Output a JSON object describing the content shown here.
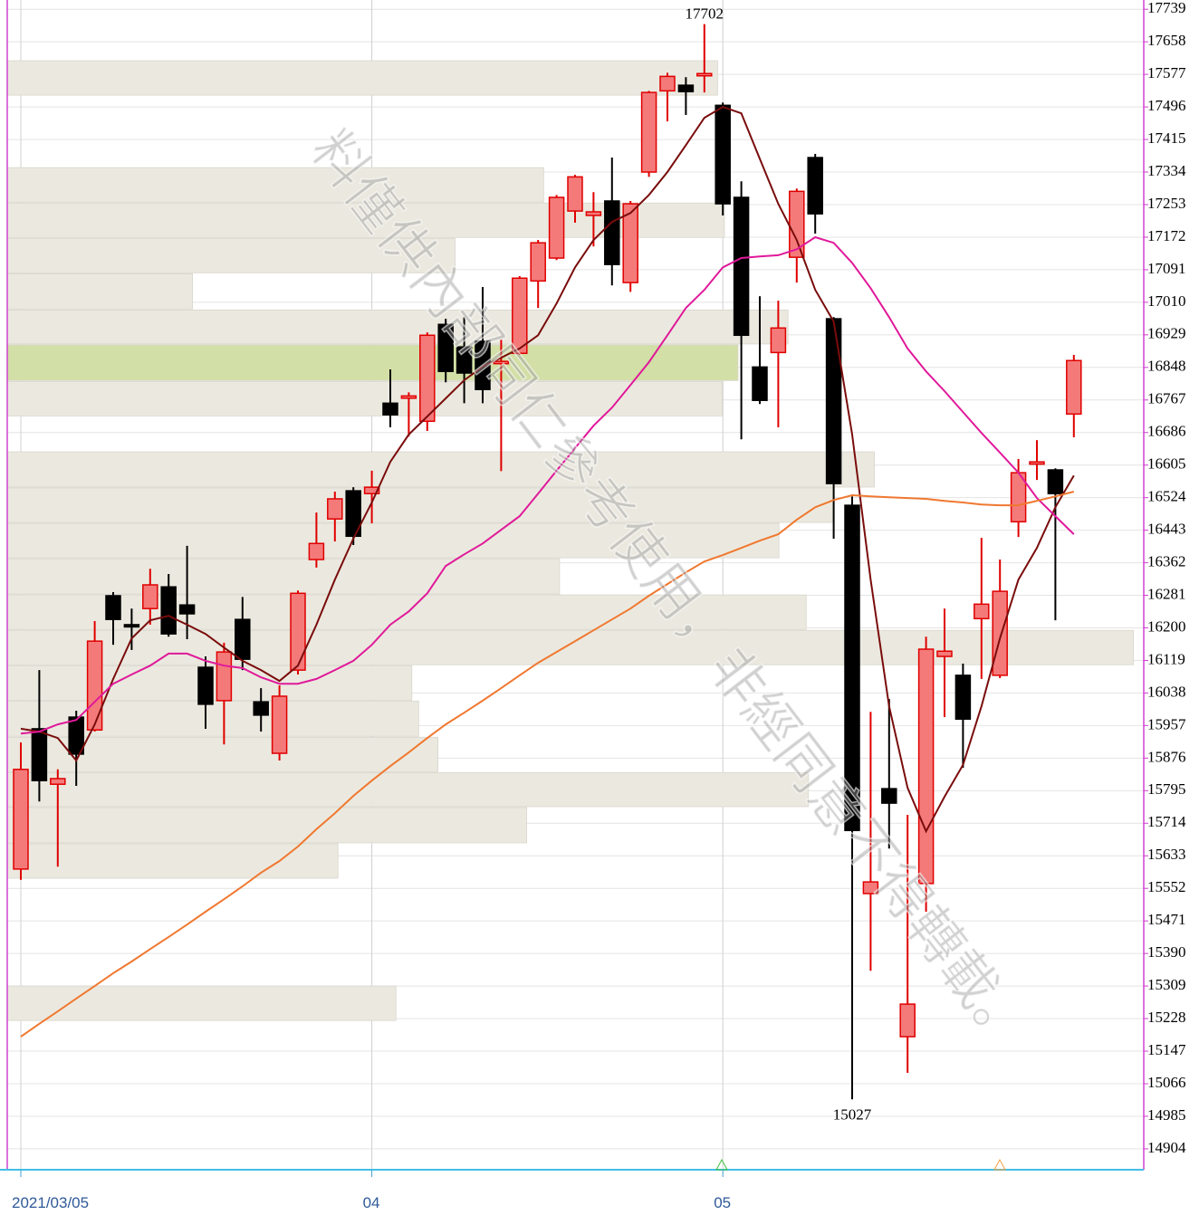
{
  "chart_data": {
    "type": "candlestick",
    "categories": [
      "2021/03/05",
      null,
      null,
      null,
      null,
      null,
      null,
      null,
      null,
      null,
      null,
      null,
      null,
      null,
      null,
      null,
      null,
      null,
      null,
      "04",
      null,
      null,
      null,
      null,
      null,
      null,
      null,
      null,
      null,
      null,
      null,
      null,
      null,
      null,
      null,
      null,
      null,
      null,
      "05",
      null,
      null,
      null,
      null,
      null,
      null,
      null,
      null,
      null,
      null,
      null,
      null,
      null,
      null,
      null,
      null,
      null,
      null,
      null
    ],
    "open": [
      15600,
      15949,
      15811,
      15978,
      15946,
      16280,
      16208,
      16248,
      16302,
      16257,
      16102,
      16019,
      16221,
      16016,
      15888,
      16095,
      16370,
      16471,
      16541,
      16534,
      16759,
      16775,
      16714,
      16955,
      16899,
      16913,
      16858,
      16883,
      17063,
      17120,
      17237,
      17226,
      17262,
      17059,
      17334,
      17536,
      17550,
      17575,
      17500,
      17271,
      16849,
      16885,
      17122,
      17370,
      16969,
      16505,
      15539,
      15800,
      15183,
      15564,
      16129,
      16082,
      16223,
      16082,
      16464,
      16611,
      16593,
      16732
    ],
    "high": [
      15915,
      16095,
      15848,
      15994,
      16217,
      16289,
      16248,
      16347,
      16334,
      16404,
      16129,
      16163,
      16277,
      16050,
      16057,
      16293,
      16487,
      16539,
      16550,
      16591,
      16843,
      16786,
      16935,
      16969,
      16973,
      17048,
      16917,
      17075,
      17165,
      17277,
      17327,
      17284,
      17370,
      17262,
      17536,
      17581,
      17570,
      17702,
      17507,
      17311,
      17025,
      17014,
      17293,
      17379,
      16973,
      16527,
      15991,
      16023,
      15735,
      16178,
      16248,
      16111,
      16424,
      16370,
      16620,
      16667,
      16597,
      16879
    ],
    "low": [
      15573,
      15768,
      15606,
      15807,
      15942,
      16158,
      16145,
      16208,
      16178,
      16172,
      15949,
      15910,
      16095,
      15942,
      15870,
      16084,
      16350,
      16415,
      16406,
      16460,
      16699,
      16676,
      16690,
      16811,
      16759,
      16759,
      16590,
      16879,
      16996,
      17115,
      17208,
      17149,
      17052,
      17036,
      17322,
      17460,
      17476,
      17532,
      17226,
      16669,
      16757,
      16699,
      17059,
      17181,
      16422,
      15027,
      15347,
      15651,
      15093,
      15494,
      15978,
      15852,
      16073,
      16075,
      16426,
      16568,
      16219,
      16674
    ],
    "close": [
      15848,
      15820,
      15825,
      15886,
      16167,
      16221,
      16206,
      16307,
      16185,
      16235,
      16010,
      16140,
      16122,
      15983,
      16030,
      16286,
      16410,
      16521,
      16428,
      16550,
      16730,
      16777,
      16928,
      16838,
      16834,
      16793,
      16863,
      17070,
      17158,
      17271,
      17322,
      17235,
      17104,
      17255,
      17532,
      17572,
      17534,
      17579,
      17255,
      16928,
      16766,
      16946,
      17286,
      17230,
      16559,
      15696,
      15568,
      15764,
      15264,
      16147,
      16142,
      15973,
      16259,
      16291,
      16586,
      16613,
      16534,
      16865
    ],
    "up_color": "#f47a7a",
    "up_edge": "#e00000",
    "down_color": "#000000",
    "annotations": {
      "high_index": 37,
      "low_index": 45
    },
    "lines": [
      {
        "color": "#7a0c0c",
        "values": [
          15949,
          15942,
          15926,
          15870,
          15960,
          16073,
          16174,
          16219,
          16230,
          16208,
          16185,
          16151,
          16118,
          16095,
          16068,
          16106,
          16208,
          16320,
          16422,
          16512,
          16613,
          16681,
          16726,
          16771,
          16816,
          16850,
          16872,
          16895,
          16928,
          17007,
          17097,
          17165,
          17210,
          17232,
          17277,
          17334,
          17401,
          17469,
          17496,
          17480,
          17367,
          17255,
          17165,
          17041,
          16962,
          16681,
          16320,
          16005,
          15802,
          15694,
          15780,
          15859,
          16005,
          16174,
          16320,
          16399,
          16500,
          16579
        ]
      },
      {
        "color": "#e0199a",
        "values": [
          15937,
          15942,
          15960,
          15971,
          16016,
          16061,
          16084,
          16106,
          16136,
          16136,
          16118,
          16106,
          16100,
          16077,
          16061,
          16061,
          16073,
          16095,
          16118,
          16158,
          16208,
          16241,
          16286,
          16354,
          16383,
          16410,
          16444,
          16478,
          16534,
          16591,
          16647,
          16703,
          16748,
          16804,
          16861,
          16928,
          16996,
          17041,
          17097,
          17120,
          17124,
          17127,
          17142,
          17172,
          17158,
          17108,
          17045,
          16973,
          16895,
          16838,
          16789,
          16737,
          16685,
          16636,
          16586,
          16523,
          16478,
          16433
        ]
      },
      {
        "color": "#f07830",
        "values": [
          15183,
          15215,
          15246,
          15278,
          15309,
          15341,
          15370,
          15401,
          15431,
          15462,
          15494,
          15525,
          15557,
          15591,
          15620,
          15656,
          15699,
          15739,
          15782,
          15820,
          15856,
          15890,
          15926,
          15960,
          15989,
          16019,
          16050,
          16082,
          16113,
          16140,
          16167,
          16194,
          16221,
          16248,
          16280,
          16309,
          16338,
          16365,
          16381,
          16399,
          16417,
          16433,
          16469,
          16500,
          16518,
          16530,
          16527,
          16525,
          16523,
          16521,
          16516,
          16512,
          16507,
          16505,
          16505,
          16516,
          16527,
          16539
        ]
      }
    ],
    "volume_profile": {
      "highs": [
        17611,
        17345,
        17257,
        17169,
        17081,
        16991,
        16904,
        16813,
        16638,
        16548,
        16460,
        16372,
        16282,
        16194,
        16106,
        16018,
        15928,
        15840,
        15753,
        15663,
        15309
      ],
      "lows": [
        17523,
        17257,
        17169,
        17081,
        16991,
        16904,
        16813,
        16725,
        16548,
        16460,
        16372,
        16282,
        16194,
        16106,
        16018,
        15928,
        15840,
        15753,
        15663,
        15575,
        15221
      ],
      "values": [
        62.5,
        47.2,
        63.1,
        39.4,
        16.3,
        68.7,
        64.3,
        62.9,
        76.3,
        72.7,
        67.9,
        48.6,
        70.3,
        99.1,
        35.6,
        36.2,
        37.9,
        70.5,
        45.7,
        29.1,
        34.2
      ],
      "xlim": [
        0,
        100
      ],
      "color": "#ebe9df",
      "highlight_index": 6,
      "highlight_color": "#d2dfa6"
    },
    "ylim": [
      14852,
      17762
    ],
    "yticks": [
      14904,
      14985,
      15066,
      15147,
      15228,
      15309,
      15390,
      15471,
      15552,
      15633,
      15714,
      15795,
      15876,
      15957,
      16038,
      16119,
      16200,
      16281,
      16362,
      16443,
      16524,
      16605,
      16686,
      16767,
      16848,
      16929,
      17010,
      17091,
      17172,
      17253,
      17334,
      17415,
      17496,
      17577,
      17658,
      17739
    ],
    "grid": true,
    "watermark": "料僅供內部同仁參考使用，非經同意不得轉載。"
  }
}
